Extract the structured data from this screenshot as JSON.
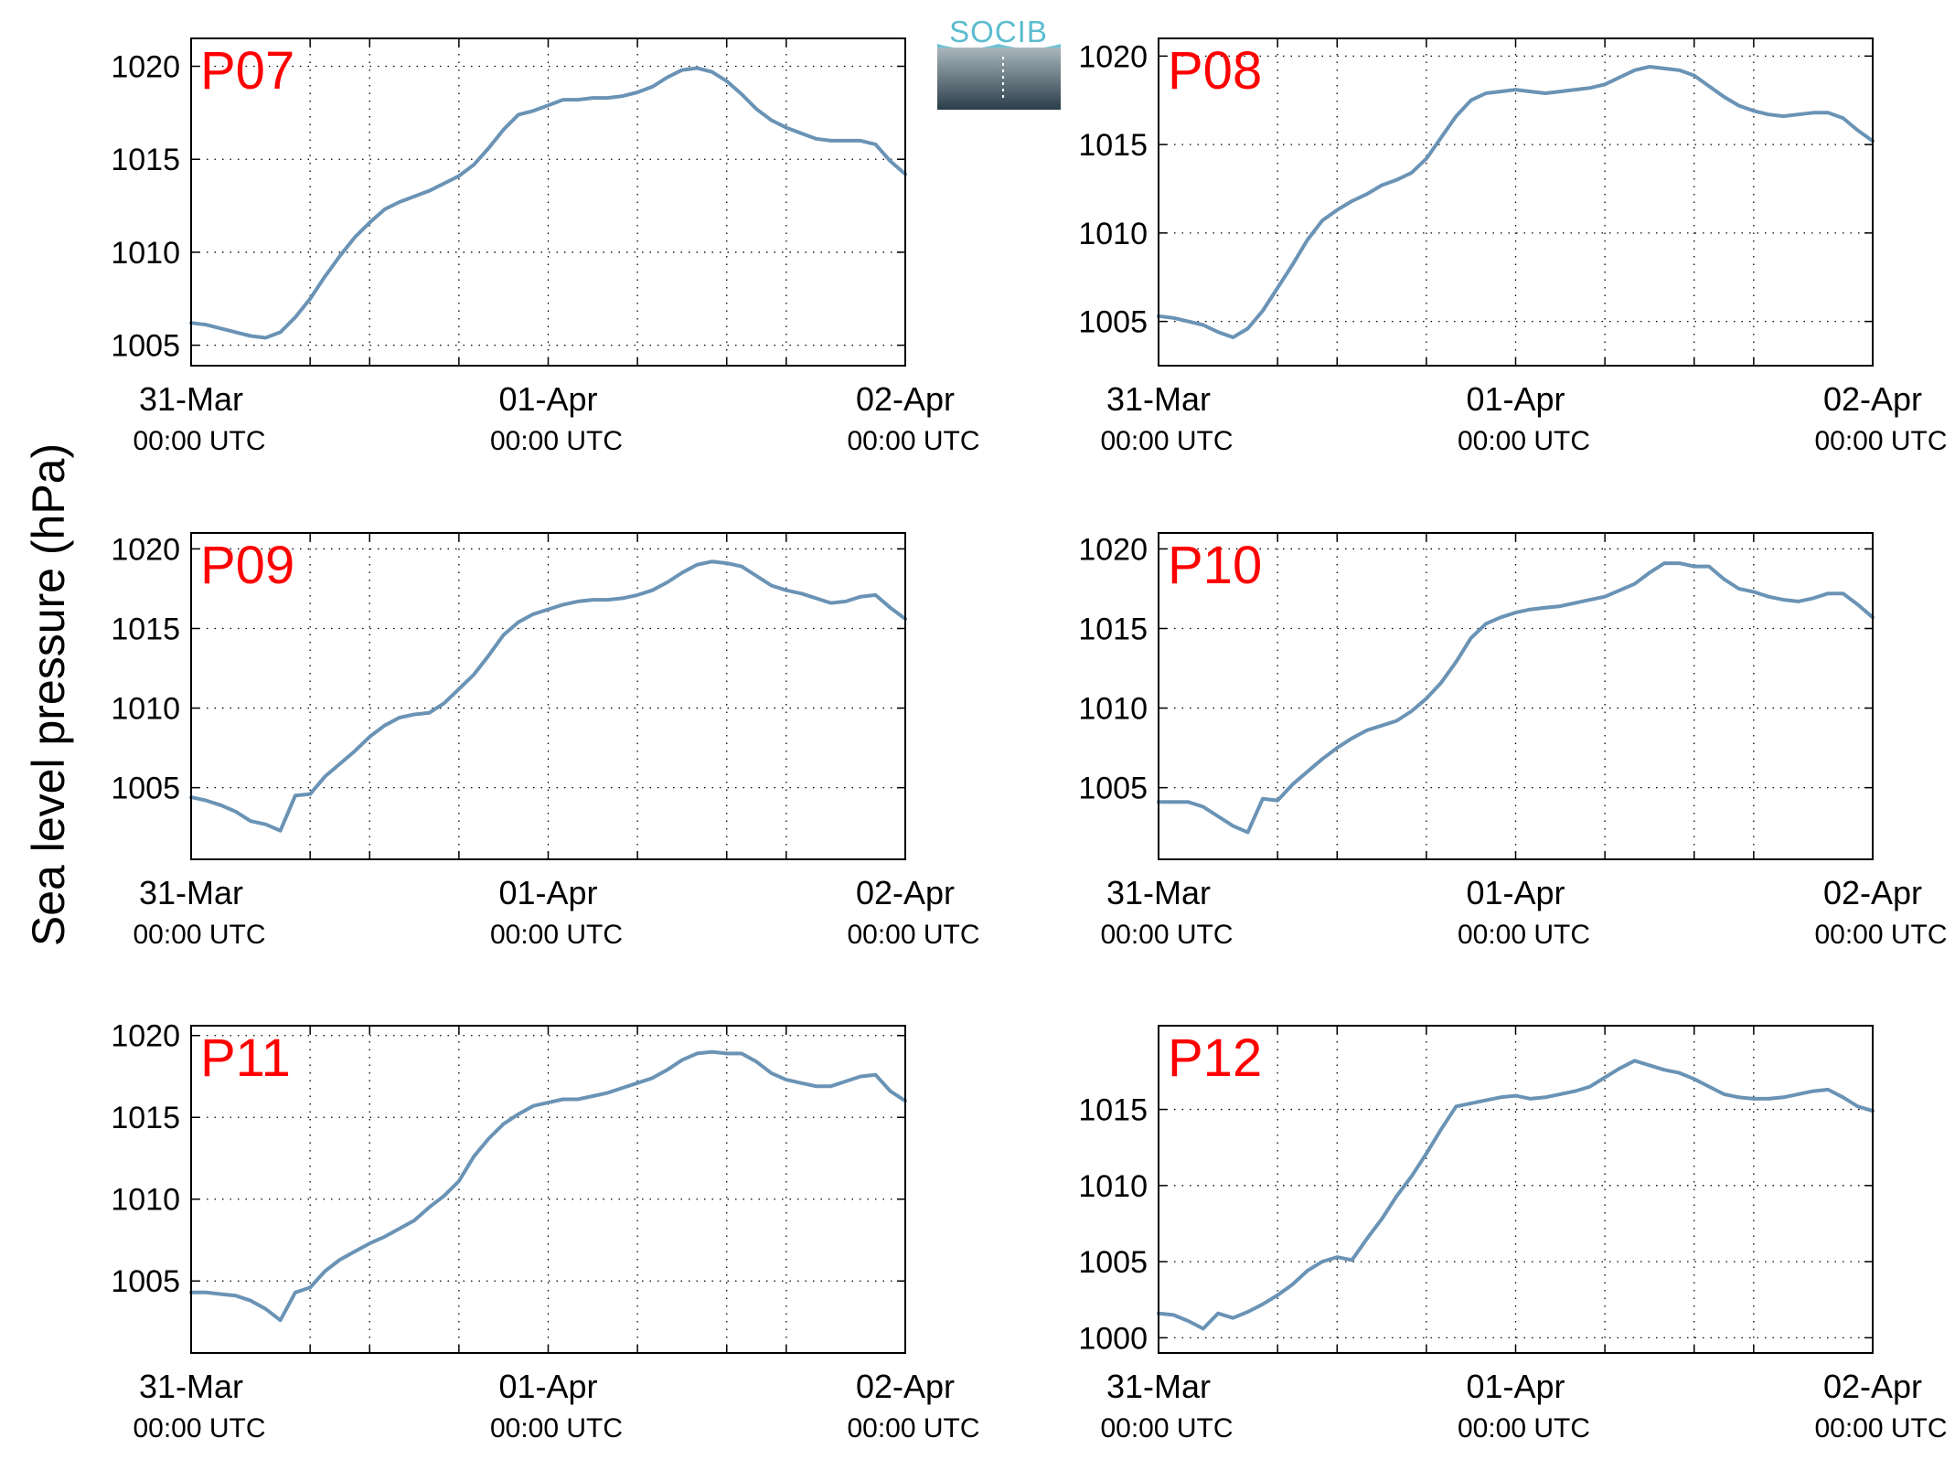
{
  "figure": {
    "ylabel": "Sea level pressure (hPa)",
    "logo_text": "SOCIB",
    "line_color": "#6a93b5",
    "label_color": "#ff0000",
    "grid": "dotted",
    "x_ticks": [
      {
        "date": "31-Mar",
        "time": "00:00 UTC"
      },
      {
        "date": "01-Apr",
        "time": "00:00 UTC"
      },
      {
        "date": "02-Apr",
        "time": "00:00 UTC"
      }
    ]
  },
  "chart_data": [
    {
      "type": "line",
      "title": "P07",
      "xlim": [
        0,
        48
      ],
      "ylim": [
        1003.9,
        1021.5
      ],
      "yticks": [
        1005,
        1010,
        1015,
        1020
      ],
      "series": [
        {
          "x": [
            0,
            1,
            2,
            3,
            4,
            5,
            6,
            7,
            8,
            9,
            10,
            11,
            12,
            13,
            14,
            15,
            16,
            17,
            18,
            19,
            20,
            21,
            22,
            23,
            24,
            25,
            26,
            27,
            28,
            29,
            30,
            31,
            32,
            33,
            34,
            35,
            36,
            37,
            38,
            39,
            40,
            41,
            42,
            43,
            44,
            45,
            46,
            47,
            48
          ],
          "values": [
            1006.2,
            1006.1,
            1005.9,
            1005.7,
            1005.5,
            1005.4,
            1005.7,
            1006.5,
            1007.5,
            1008.7,
            1009.8,
            1010.8,
            1011.6,
            1012.3,
            1012.7,
            1013.0,
            1013.3,
            1013.7,
            1014.1,
            1014.7,
            1015.6,
            1016.6,
            1017.4,
            1017.6,
            1017.9,
            1018.2,
            1018.2,
            1018.3,
            1018.3,
            1018.4,
            1018.6,
            1018.9,
            1019.4,
            1019.8,
            1019.9,
            1019.7,
            1019.2,
            1018.5,
            1017.7,
            1017.1,
            1016.7,
            1016.4,
            1016.1,
            1016.0,
            1016.0,
            1016.0,
            1015.8,
            1014.9,
            1014.2
          ]
        }
      ]
    },
    {
      "type": "line",
      "title": "P08",
      "xlim": [
        0,
        48
      ],
      "ylim": [
        1002.5,
        1021.0
      ],
      "yticks": [
        1005,
        1010,
        1015,
        1020
      ],
      "series": [
        {
          "x": [
            0,
            1,
            2,
            3,
            4,
            5,
            6,
            7,
            8,
            9,
            10,
            11,
            12,
            13,
            14,
            15,
            16,
            17,
            18,
            19,
            20,
            21,
            22,
            23,
            24,
            25,
            26,
            27,
            28,
            29,
            30,
            31,
            32,
            33,
            34,
            35,
            36,
            37,
            38,
            39,
            40,
            41,
            42,
            43,
            44,
            45,
            46,
            47,
            48
          ],
          "values": [
            1005.3,
            1005.2,
            1005.0,
            1004.8,
            1004.4,
            1004.1,
            1004.6,
            1005.6,
            1006.9,
            1008.2,
            1009.6,
            1010.7,
            1011.3,
            1011.8,
            1012.2,
            1012.7,
            1013.0,
            1013.4,
            1014.2,
            1015.4,
            1016.6,
            1017.5,
            1017.9,
            1018.0,
            1018.1,
            1018.0,
            1017.9,
            1018.0,
            1018.1,
            1018.2,
            1018.4,
            1018.8,
            1019.2,
            1019.4,
            1019.3,
            1019.2,
            1018.9,
            1018.3,
            1017.7,
            1017.2,
            1016.9,
            1016.7,
            1016.6,
            1016.7,
            1016.8,
            1016.8,
            1016.5,
            1015.8,
            1015.2
          ]
        }
      ]
    },
    {
      "type": "line",
      "title": "P09",
      "xlim": [
        0,
        48
      ],
      "ylim": [
        1000.5,
        1021.0
      ],
      "yticks": [
        1005,
        1010,
        1015,
        1020
      ],
      "series": [
        {
          "x": [
            0,
            1,
            2,
            3,
            4,
            5,
            6,
            7,
            8,
            9,
            10,
            11,
            12,
            13,
            14,
            15,
            16,
            17,
            18,
            19,
            20,
            21,
            22,
            23,
            24,
            25,
            26,
            27,
            28,
            29,
            30,
            31,
            32,
            33,
            34,
            35,
            36,
            37,
            38,
            39,
            40,
            41,
            42,
            43,
            44,
            45,
            46,
            47,
            48
          ],
          "values": [
            1004.4,
            1004.2,
            1003.9,
            1003.5,
            1002.9,
            1002.7,
            1002.3,
            1004.5,
            1004.6,
            1005.7,
            1006.5,
            1007.3,
            1008.2,
            1008.9,
            1009.4,
            1009.6,
            1009.7,
            1010.3,
            1011.2,
            1012.1,
            1013.3,
            1014.6,
            1015.4,
            1015.9,
            1016.2,
            1016.5,
            1016.7,
            1016.8,
            1016.8,
            1016.9,
            1017.1,
            1017.4,
            1017.9,
            1018.5,
            1019.0,
            1019.2,
            1019.1,
            1018.9,
            1018.3,
            1017.7,
            1017.4,
            1017.2,
            1016.9,
            1016.6,
            1016.7,
            1017.0,
            1017.1,
            1016.3,
            1015.6
          ]
        }
      ]
    },
    {
      "type": "line",
      "title": "P10",
      "xlim": [
        0,
        48
      ],
      "ylim": [
        1000.5,
        1021.0
      ],
      "yticks": [
        1005,
        1010,
        1015,
        1020
      ],
      "series": [
        {
          "x": [
            0,
            1,
            2,
            3,
            4,
            5,
            6,
            7,
            8,
            9,
            10,
            11,
            12,
            13,
            14,
            15,
            16,
            17,
            18,
            19,
            20,
            21,
            22,
            23,
            24,
            25,
            26,
            27,
            28,
            29,
            30,
            31,
            32,
            33,
            34,
            35,
            36,
            37,
            38,
            39,
            40,
            41,
            42,
            43,
            44,
            45,
            46,
            47,
            48
          ],
          "values": [
            1004.1,
            1004.1,
            1004.1,
            1003.8,
            1003.2,
            1002.6,
            1002.2,
            1004.3,
            1004.2,
            1005.2,
            1006.0,
            1006.8,
            1007.5,
            1008.1,
            1008.6,
            1008.9,
            1009.2,
            1009.8,
            1010.6,
            1011.6,
            1012.9,
            1014.4,
            1015.3,
            1015.7,
            1016.0,
            1016.2,
            1016.3,
            1016.4,
            1016.6,
            1016.8,
            1017.0,
            1017.4,
            1017.8,
            1018.5,
            1019.1,
            1019.1,
            1018.9,
            1018.9,
            1018.1,
            1017.5,
            1017.3,
            1017.0,
            1016.8,
            1016.7,
            1016.9,
            1017.2,
            1017.2,
            1016.5,
            1015.7
          ]
        }
      ]
    },
    {
      "type": "line",
      "title": "P11",
      "xlim": [
        0,
        48
      ],
      "ylim": [
        1000.6,
        1020.6
      ],
      "yticks": [
        1005,
        1010,
        1015,
        1020
      ],
      "series": [
        {
          "x": [
            0,
            1,
            2,
            3,
            4,
            5,
            6,
            7,
            8,
            9,
            10,
            11,
            12,
            13,
            14,
            15,
            16,
            17,
            18,
            19,
            20,
            21,
            22,
            23,
            24,
            25,
            26,
            27,
            28,
            29,
            30,
            31,
            32,
            33,
            34,
            35,
            36,
            37,
            38,
            39,
            40,
            41,
            42,
            43,
            44,
            45,
            46,
            47,
            48
          ],
          "values": [
            1004.3,
            1004.3,
            1004.2,
            1004.1,
            1003.8,
            1003.3,
            1002.6,
            1004.3,
            1004.6,
            1005.6,
            1006.3,
            1006.8,
            1007.3,
            1007.7,
            1008.2,
            1008.7,
            1009.5,
            1010.2,
            1011.1,
            1012.6,
            1013.7,
            1014.6,
            1015.2,
            1015.7,
            1015.9,
            1016.1,
            1016.1,
            1016.3,
            1016.5,
            1016.8,
            1017.1,
            1017.4,
            1017.9,
            1018.5,
            1018.9,
            1019.0,
            1018.9,
            1018.9,
            1018.4,
            1017.7,
            1017.3,
            1017.1,
            1016.9,
            1016.9,
            1017.2,
            1017.5,
            1017.6,
            1016.6,
            1016.0
          ]
        }
      ]
    },
    {
      "type": "line",
      "title": "P12",
      "xlim": [
        0,
        48
      ],
      "ylim": [
        999.0,
        1020.5
      ],
      "yticks": [
        1000,
        1005,
        1010,
        1015
      ],
      "series": [
        {
          "x": [
            0,
            1,
            2,
            3,
            4,
            5,
            6,
            7,
            8,
            9,
            10,
            11,
            12,
            13,
            14,
            15,
            16,
            17,
            18,
            19,
            20,
            21,
            22,
            23,
            24,
            25,
            26,
            27,
            28,
            29,
            30,
            31,
            32,
            33,
            34,
            35,
            36,
            37,
            38,
            39,
            40,
            41,
            42,
            43,
            44,
            45,
            46,
            47,
            48
          ],
          "values": [
            1001.6,
            1001.5,
            1001.1,
            1000.6,
            1001.6,
            1001.3,
            1001.7,
            1002.2,
            1002.8,
            1003.5,
            1004.4,
            1005.0,
            1005.3,
            1005.1,
            1006.5,
            1007.8,
            1009.3,
            1010.6,
            1012.1,
            1013.7,
            1015.2,
            1015.4,
            1015.6,
            1015.8,
            1015.9,
            1015.7,
            1015.8,
            1016.0,
            1016.2,
            1016.5,
            1017.1,
            1017.7,
            1018.2,
            1017.9,
            1017.6,
            1017.4,
            1017.0,
            1016.5,
            1016.0,
            1015.8,
            1015.7,
            1015.7,
            1015.8,
            1016.0,
            1016.2,
            1016.3,
            1015.8,
            1015.2,
            1014.9
          ]
        }
      ]
    }
  ]
}
